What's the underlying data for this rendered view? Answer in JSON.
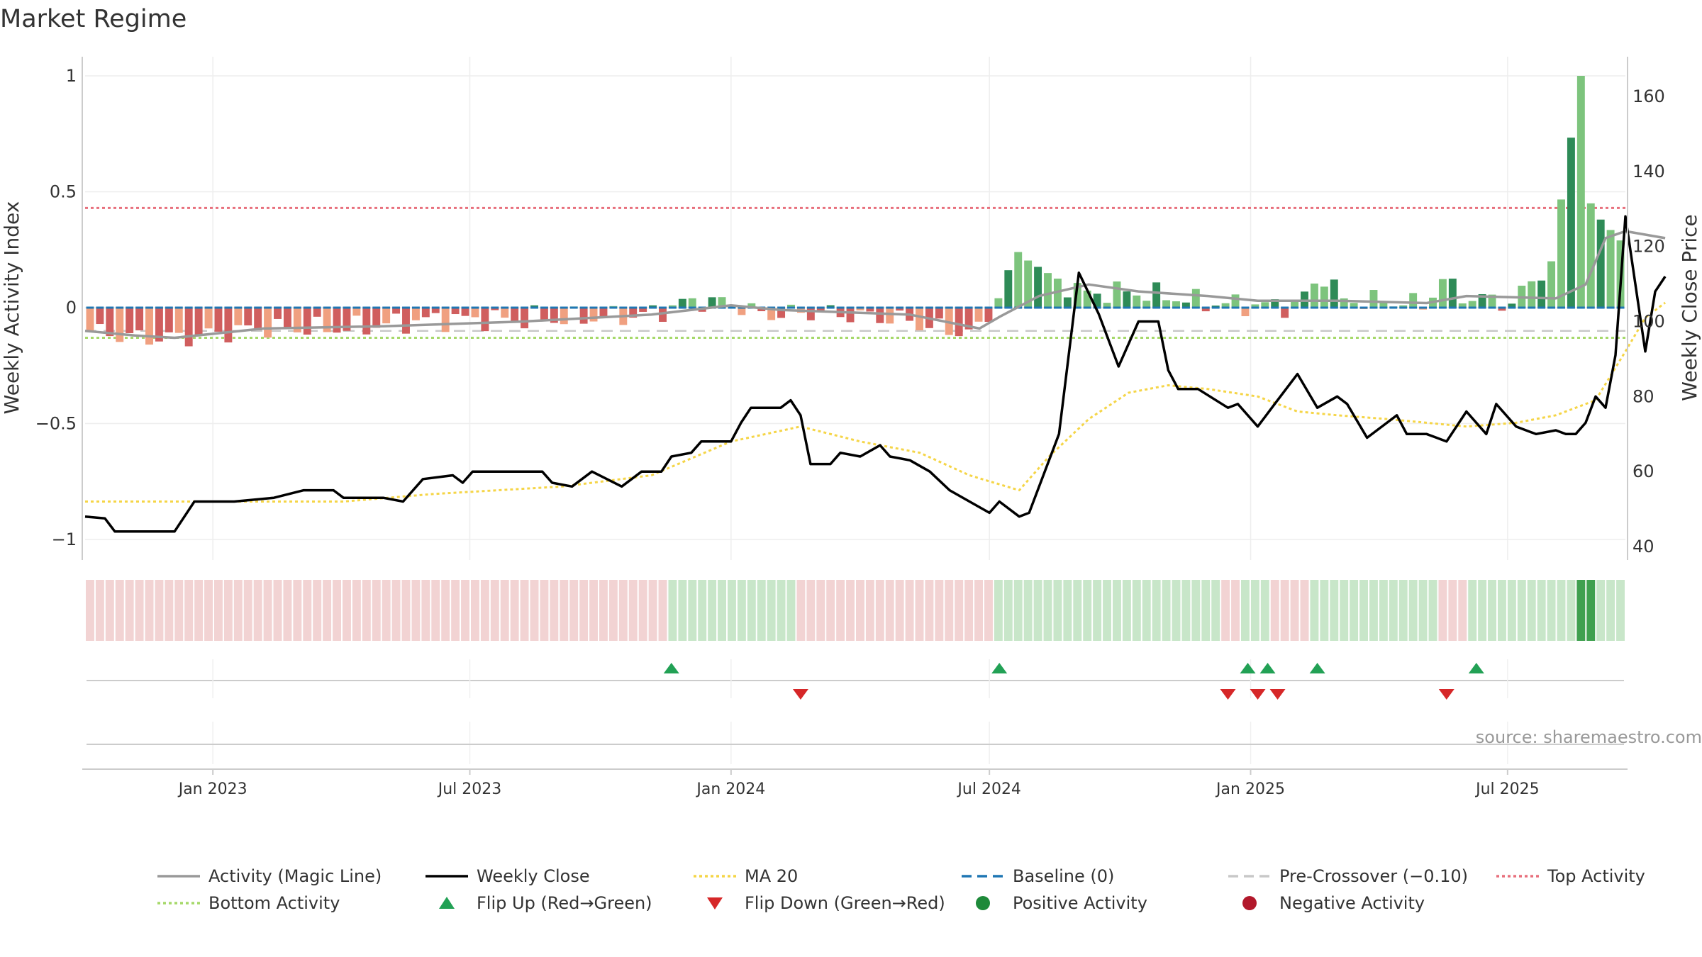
{
  "chart_data": {
    "type": "bar",
    "title": "Market Regime",
    "source": "source: sharemaestro.com",
    "y_left": {
      "label": "Weekly Activity Index",
      "ylim": [
        -1.08,
        1.0
      ],
      "ticks": [
        1,
        0.5,
        0,
        -0.5,
        -1
      ],
      "tick_labels": [
        "1",
        "0.5",
        "0",
        "−0.5",
        "−1"
      ]
    },
    "y_right": {
      "label": "Weekly Close Price",
      "ylim": [
        35,
        166
      ],
      "ticks": [
        160,
        140,
        120,
        100,
        80,
        60,
        40
      ],
      "tick_labels": [
        "160",
        "140",
        "120",
        "100",
        "80",
        "60",
        "40"
      ]
    },
    "x_dates": {
      "start": "2022-10-03",
      "end": "2025-09-22"
    },
    "x_ticks": [
      {
        "date": "2023-01-01",
        "label": "Jan 2023"
      },
      {
        "date": "2023-07-01",
        "label": "Jul 2023"
      },
      {
        "date": "2024-01-01",
        "label": "Jan 2024"
      },
      {
        "date": "2024-07-01",
        "label": "Jul 2024"
      },
      {
        "date": "2025-01-01",
        "label": "Jan 2025"
      },
      {
        "date": "2025-07-01",
        "label": "Jul 2025"
      }
    ],
    "reference_lines": {
      "baseline": 0,
      "pre_crossover": -0.1,
      "top_activity": 0.43,
      "bottom_activity": -0.13
    },
    "weekly_activity_anchors": [
      {
        "date": "2022-10-03",
        "value": -0.1
      },
      {
        "date": "2022-11-07",
        "value": -0.13
      },
      {
        "date": "2022-12-05",
        "value": -0.13
      },
      {
        "date": "2023-01-30",
        "value": -0.09
      },
      {
        "date": "2023-04-03",
        "value": -0.09
      },
      {
        "date": "2023-06-05",
        "value": -0.05
      },
      {
        "date": "2023-09-04",
        "value": -0.05
      },
      {
        "date": "2023-11-06",
        "value": -0.03
      },
      {
        "date": "2023-12-04",
        "value": 0.03
      },
      {
        "date": "2024-01-01",
        "value": 0.02
      },
      {
        "date": "2024-01-22",
        "value": -0.03
      },
      {
        "date": "2024-03-04",
        "value": -0.02
      },
      {
        "date": "2024-04-29",
        "value": -0.05
      },
      {
        "date": "2024-06-03",
        "value": -0.1
      },
      {
        "date": "2024-06-24",
        "value": -0.1
      },
      {
        "date": "2024-07-08",
        "value": 0.05
      },
      {
        "date": "2024-07-22",
        "value": 0.24
      },
      {
        "date": "2024-08-12",
        "value": 0.13
      },
      {
        "date": "2024-09-09",
        "value": 0.06
      },
      {
        "date": "2024-10-07",
        "value": 0.07
      },
      {
        "date": "2024-11-04",
        "value": 0.05
      },
      {
        "date": "2024-12-02",
        "value": 0.02
      },
      {
        "date": "2025-01-06",
        "value": 0.01
      },
      {
        "date": "2025-02-03",
        "value": 0.01
      },
      {
        "date": "2025-02-24",
        "value": 0.14
      },
      {
        "date": "2025-03-10",
        "value": 0.03
      },
      {
        "date": "2025-04-07",
        "value": 0.03
      },
      {
        "date": "2025-05-05",
        "value": 0.01
      },
      {
        "date": "2025-05-19",
        "value": 0.12
      },
      {
        "date": "2025-06-02",
        "value": 0.05
      },
      {
        "date": "2025-07-07",
        "value": 0.02
      },
      {
        "date": "2025-08-04",
        "value": 0.2
      },
      {
        "date": "2025-08-25",
        "value": 1.0
      },
      {
        "date": "2025-09-01",
        "value": 0.45
      },
      {
        "date": "2025-09-08",
        "value": 0.38
      },
      {
        "date": "2025-09-22",
        "value": 0.29
      }
    ],
    "series": [
      {
        "name": "Weekly Close",
        "points": [
          {
            "date": "2022-10-03",
            "value": 48
          },
          {
            "date": "2022-10-17",
            "value": 47.5
          },
          {
            "date": "2022-10-24",
            "value": 44
          },
          {
            "date": "2022-12-05",
            "value": 44
          },
          {
            "date": "2022-12-19",
            "value": 52
          },
          {
            "date": "2023-01-16",
            "value": 52
          },
          {
            "date": "2023-02-13",
            "value": 53
          },
          {
            "date": "2023-03-06",
            "value": 55
          },
          {
            "date": "2023-03-27",
            "value": 55
          },
          {
            "date": "2023-04-03",
            "value": 53
          },
          {
            "date": "2023-05-01",
            "value": 53
          },
          {
            "date": "2023-05-15",
            "value": 52
          },
          {
            "date": "2023-05-29",
            "value": 58
          },
          {
            "date": "2023-06-19",
            "value": 59
          },
          {
            "date": "2023-06-26",
            "value": 57
          },
          {
            "date": "2023-07-03",
            "value": 60
          },
          {
            "date": "2023-08-07",
            "value": 60
          },
          {
            "date": "2023-08-21",
            "value": 60
          },
          {
            "date": "2023-08-28",
            "value": 57
          },
          {
            "date": "2023-09-11",
            "value": 56
          },
          {
            "date": "2023-09-25",
            "value": 60
          },
          {
            "date": "2023-10-16",
            "value": 56
          },
          {
            "date": "2023-10-30",
            "value": 60
          },
          {
            "date": "2023-11-13",
            "value": 60
          },
          {
            "date": "2023-11-20",
            "value": 64
          },
          {
            "date": "2023-12-04",
            "value": 65
          },
          {
            "date": "2023-12-11",
            "value": 68
          },
          {
            "date": "2024-01-01",
            "value": 68
          },
          {
            "date": "2024-01-08",
            "value": 73
          },
          {
            "date": "2024-01-15",
            "value": 77
          },
          {
            "date": "2024-02-05",
            "value": 77
          },
          {
            "date": "2024-02-12",
            "value": 79
          },
          {
            "date": "2024-02-19",
            "value": 75
          },
          {
            "date": "2024-02-26",
            "value": 62
          },
          {
            "date": "2024-03-11",
            "value": 62
          },
          {
            "date": "2024-03-18",
            "value": 65
          },
          {
            "date": "2024-04-01",
            "value": 64
          },
          {
            "date": "2024-04-15",
            "value": 67
          },
          {
            "date": "2024-04-22",
            "value": 64
          },
          {
            "date": "2024-05-06",
            "value": 63
          },
          {
            "date": "2024-05-20",
            "value": 60
          },
          {
            "date": "2024-06-03",
            "value": 55
          },
          {
            "date": "2024-06-17",
            "value": 52
          },
          {
            "date": "2024-07-01",
            "value": 49
          },
          {
            "date": "2024-07-08",
            "value": 52
          },
          {
            "date": "2024-07-22",
            "value": 48
          },
          {
            "date": "2024-07-29",
            "value": 49
          },
          {
            "date": "2024-08-19",
            "value": 70
          },
          {
            "date": "2024-09-02",
            "value": 113
          },
          {
            "date": "2024-09-16",
            "value": 102
          },
          {
            "date": "2024-09-30",
            "value": 88
          },
          {
            "date": "2024-10-14",
            "value": 100
          },
          {
            "date": "2024-10-28",
            "value": 100
          },
          {
            "date": "2024-11-04",
            "value": 87
          },
          {
            "date": "2024-11-11",
            "value": 82
          },
          {
            "date": "2024-11-25",
            "value": 82
          },
          {
            "date": "2024-12-16",
            "value": 77
          },
          {
            "date": "2024-12-23",
            "value": 78
          },
          {
            "date": "2025-01-06",
            "value": 72
          },
          {
            "date": "2025-01-20",
            "value": 79
          },
          {
            "date": "2025-02-03",
            "value": 86
          },
          {
            "date": "2025-02-17",
            "value": 77
          },
          {
            "date": "2025-03-03",
            "value": 80
          },
          {
            "date": "2025-03-10",
            "value": 78
          },
          {
            "date": "2025-03-24",
            "value": 69
          },
          {
            "date": "2025-04-07",
            "value": 73
          },
          {
            "date": "2025-04-14",
            "value": 75
          },
          {
            "date": "2025-04-21",
            "value": 70
          },
          {
            "date": "2025-05-05",
            "value": 70
          },
          {
            "date": "2025-05-12",
            "value": 69
          },
          {
            "date": "2025-05-19",
            "value": 68
          },
          {
            "date": "2025-06-02",
            "value": 76
          },
          {
            "date": "2025-06-16",
            "value": 70
          },
          {
            "date": "2025-06-23",
            "value": 78
          },
          {
            "date": "2025-07-07",
            "value": 72
          },
          {
            "date": "2025-07-21",
            "value": 70
          },
          {
            "date": "2025-08-04",
            "value": 71
          },
          {
            "date": "2025-08-11",
            "value": 70
          },
          {
            "date": "2025-08-18",
            "value": 70
          },
          {
            "date": "2025-08-25",
            "value": 73
          },
          {
            "date": "2025-09-01",
            "value": 80
          },
          {
            "date": "2025-09-08",
            "value": 77
          },
          {
            "date": "2025-09-15",
            "value": 91
          },
          {
            "date": "2025-09-22",
            "value": 128
          },
          {
            "date": "2025-09-29",
            "value": 110
          },
          {
            "date": "2025-10-06",
            "value": 92
          },
          {
            "date": "2025-10-13",
            "value": 108
          },
          {
            "date": "2025-10-20",
            "value": 112
          }
        ]
      },
      {
        "name": "MA 20",
        "points": [
          {
            "date": "2022-10-03",
            "value": 52
          },
          {
            "date": "2023-01-16",
            "value": 52
          },
          {
            "date": "2023-04-03",
            "value": 52
          },
          {
            "date": "2023-06-05",
            "value": 54
          },
          {
            "date": "2023-09-04",
            "value": 56
          },
          {
            "date": "2023-11-06",
            "value": 59
          },
          {
            "date": "2024-01-01",
            "value": 68
          },
          {
            "date": "2024-02-19",
            "value": 72
          },
          {
            "date": "2024-04-01",
            "value": 68
          },
          {
            "date": "2024-05-13",
            "value": 65
          },
          {
            "date": "2024-06-17",
            "value": 59
          },
          {
            "date": "2024-07-22",
            "value": 55
          },
          {
            "date": "2024-08-12",
            "value": 64
          },
          {
            "date": "2024-09-09",
            "value": 74
          },
          {
            "date": "2024-10-07",
            "value": 81
          },
          {
            "date": "2024-11-04",
            "value": 83
          },
          {
            "date": "2024-12-02",
            "value": 82
          },
          {
            "date": "2025-01-06",
            "value": 80
          },
          {
            "date": "2025-02-03",
            "value": 76
          },
          {
            "date": "2025-03-03",
            "value": 75
          },
          {
            "date": "2025-04-07",
            "value": 74
          },
          {
            "date": "2025-05-05",
            "value": 73
          },
          {
            "date": "2025-06-02",
            "value": 72
          },
          {
            "date": "2025-07-07",
            "value": 73
          },
          {
            "date": "2025-08-04",
            "value": 75
          },
          {
            "date": "2025-09-01",
            "value": 79
          },
          {
            "date": "2025-09-22",
            "value": 92
          },
          {
            "date": "2025-10-06",
            "value": 101
          },
          {
            "date": "2025-10-20",
            "value": 105
          }
        ]
      },
      {
        "name": "Activity (Magic Line)",
        "points": [
          {
            "date": "2022-10-03",
            "value": -0.1
          },
          {
            "date": "2022-11-07",
            "value": -0.12
          },
          {
            "date": "2022-12-05",
            "value": -0.13
          },
          {
            "date": "2023-02-06",
            "value": -0.09
          },
          {
            "date": "2023-05-01",
            "value": -0.08
          },
          {
            "date": "2023-08-07",
            "value": -0.06
          },
          {
            "date": "2023-11-06",
            "value": -0.03
          },
          {
            "date": "2024-01-01",
            "value": 0.01
          },
          {
            "date": "2024-02-05",
            "value": -0.01
          },
          {
            "date": "2024-05-06",
            "value": -0.03
          },
          {
            "date": "2024-06-24",
            "value": -0.09
          },
          {
            "date": "2024-07-08",
            "value": -0.04
          },
          {
            "date": "2024-08-05",
            "value": 0.05
          },
          {
            "date": "2024-09-09",
            "value": 0.1
          },
          {
            "date": "2024-10-14",
            "value": 0.07
          },
          {
            "date": "2024-12-02",
            "value": 0.05
          },
          {
            "date": "2025-01-06",
            "value": 0.03
          },
          {
            "date": "2025-03-03",
            "value": 0.03
          },
          {
            "date": "2025-05-05",
            "value": 0.02
          },
          {
            "date": "2025-06-02",
            "value": 0.05
          },
          {
            "date": "2025-08-04",
            "value": 0.04
          },
          {
            "date": "2025-08-25",
            "value": 0.1
          },
          {
            "date": "2025-09-08",
            "value": 0.3
          },
          {
            "date": "2025-09-22",
            "value": 0.33
          },
          {
            "date": "2025-10-20",
            "value": 0.3
          }
        ]
      }
    ],
    "regime_segments": [
      {
        "start": "2022-10-03",
        "end": "2023-11-20",
        "regime": "negative"
      },
      {
        "start": "2023-11-20",
        "end": "2024-02-19",
        "regime": "positive"
      },
      {
        "start": "2024-02-19",
        "end": "2024-07-08",
        "regime": "negative"
      },
      {
        "start": "2024-07-08",
        "end": "2024-12-16",
        "regime": "positive"
      },
      {
        "start": "2024-12-16",
        "end": "2024-12-30",
        "regime": "negative"
      },
      {
        "start": "2024-12-30",
        "end": "2025-01-20",
        "regime": "positive"
      },
      {
        "start": "2025-01-20",
        "end": "2025-02-17",
        "regime": "negative"
      },
      {
        "start": "2025-02-17",
        "end": "2025-05-19",
        "regime": "positive"
      },
      {
        "start": "2025-05-19",
        "end": "2025-06-09",
        "regime": "negative"
      },
      {
        "start": "2025-06-09",
        "end": "2025-10-27",
        "regime": "positive"
      }
    ],
    "flips": {
      "up": [
        "2023-11-20",
        "2024-07-08",
        "2024-12-30",
        "2025-01-13",
        "2025-02-17",
        "2025-06-09"
      ],
      "down": [
        "2024-02-19",
        "2024-12-16",
        "2025-01-06",
        "2025-01-20",
        "2025-05-19"
      ]
    },
    "legend": [
      {
        "label": "Activity (Magic Line)",
        "kind": "line",
        "color": "#999999",
        "dash": ""
      },
      {
        "label": "Weekly Close",
        "kind": "line",
        "color": "#000000",
        "dash": ""
      },
      {
        "label": "MA 20",
        "kind": "line",
        "color": "#F5D547",
        "dash": "4,4"
      },
      {
        "label": "Baseline (0)",
        "kind": "line",
        "color": "#1F77B4",
        "dash": "14,8"
      },
      {
        "label": "Pre-Crossover (−0.10)",
        "kind": "line",
        "color": "#C8C8C8",
        "dash": "14,8"
      },
      {
        "label": "Top Activity",
        "kind": "line",
        "color": "#E8707D",
        "dash": "4,4"
      },
      {
        "label": "Bottom Activity",
        "kind": "line",
        "color": "#A6D96A",
        "dash": "4,4"
      },
      {
        "label": "Flip Up (Red→Green)",
        "kind": "triangle-up",
        "color": "#22A155"
      },
      {
        "label": "Flip Down (Green→Red)",
        "kind": "triangle-down",
        "color": "#D62728"
      },
      {
        "label": "Positive Activity",
        "kind": "dot",
        "color": "#1E8A3A"
      },
      {
        "label": "Negative Activity",
        "kind": "dot",
        "color": "#B2182B"
      }
    ],
    "colors": {
      "pos_dark": "#2E8B57",
      "pos_light": "#7DC47D",
      "neg_dark": "#D05E5E",
      "neg_light": "#F0A080",
      "regime_pos": "#C8E6C9",
      "regime_neg": "#F2D3D3",
      "regime_pos_strong": "#3FA04F",
      "grid": "#EEEEEE"
    }
  }
}
